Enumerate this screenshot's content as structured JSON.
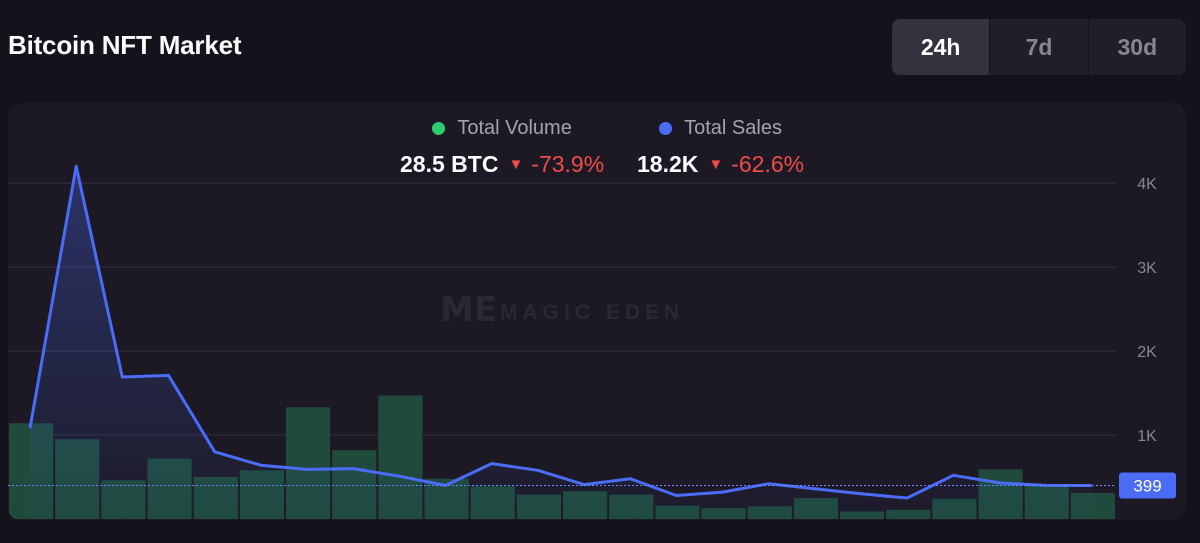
{
  "title": "Bitcoin NFT Market",
  "timeframes": [
    {
      "label": "24h",
      "active": true
    },
    {
      "label": "7d",
      "active": false
    },
    {
      "label": "30d",
      "active": false
    }
  ],
  "legend": {
    "volume": {
      "label": "Total Volume",
      "value": "28.5 BTC",
      "change": "-73.9%",
      "color": "#2ecc71"
    },
    "sales": {
      "label": "Total Sales",
      "value": "18.2K",
      "change": "-62.6%",
      "color": "#4a6cf7"
    }
  },
  "watermark": "MAGIC EDEN",
  "current_value_label": "399",
  "chart_data": {
    "type": "line+bar",
    "y_axis": {
      "ticks": [
        "1K",
        "2K",
        "3K",
        "4K"
      ],
      "tick_values": [
        1000,
        2000,
        3000,
        4000
      ],
      "range": [
        0,
        4000
      ],
      "grid": true
    },
    "series": [
      {
        "name": "Total Sales",
        "type": "line",
        "color": "#4a6cf7",
        "values": [
          1080,
          4200,
          1690,
          1710,
          800,
          640,
          590,
          600,
          510,
          400,
          660,
          580,
          410,
          480,
          280,
          320,
          420,
          360,
          300,
          250,
          520,
          430,
          400,
          399
        ]
      },
      {
        "name": "Total Volume",
        "type": "bar",
        "color": "#1f4a3c",
        "values": [
          1140,
          950,
          460,
          720,
          500,
          580,
          1330,
          820,
          1470,
          480,
          390,
          290,
          330,
          290,
          160,
          130,
          150,
          250,
          90,
          110,
          240,
          590,
          400,
          310
        ]
      }
    ]
  }
}
